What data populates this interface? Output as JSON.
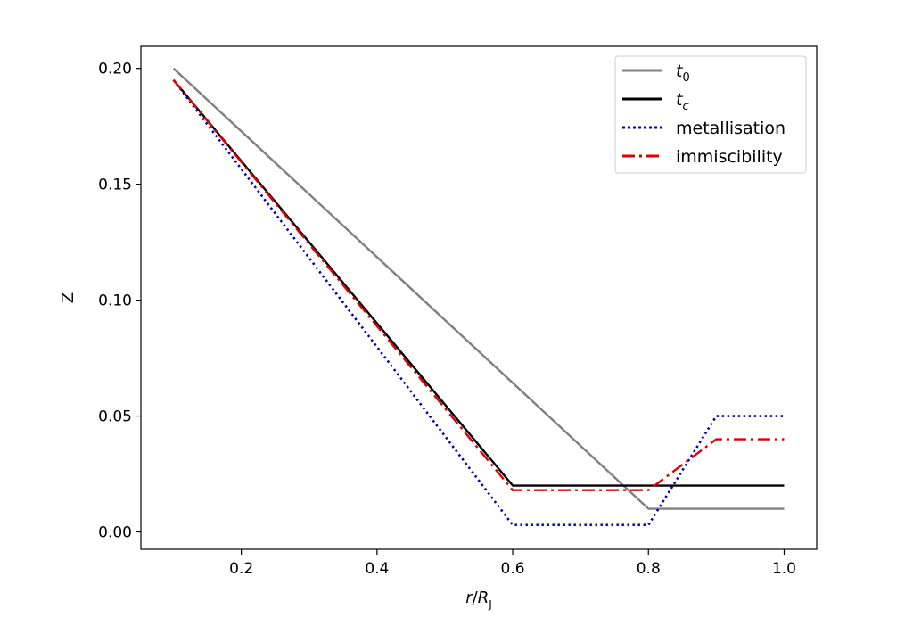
{
  "chart_data": {
    "type": "line",
    "xlabel": "r/R_J",
    "ylabel": "Z",
    "xlim": [
      0.052,
      1.048
    ],
    "ylim": [
      -0.0075,
      0.2095
    ],
    "xticks": [
      0.2,
      0.4,
      0.6,
      0.8,
      1.0
    ],
    "xtick_labels": [
      "0.2",
      "0.4",
      "0.6",
      "0.8",
      "1.0"
    ],
    "yticks": [
      0.0,
      0.05,
      0.1,
      0.15,
      0.2
    ],
    "ytick_labels": [
      "0.00",
      "0.05",
      "0.10",
      "0.15",
      "0.20"
    ],
    "grid": false,
    "legend_position": "top-right",
    "series": [
      {
        "name": "t0",
        "label_base": "t",
        "label_sub": "0",
        "italic": true,
        "color": "#808080",
        "style": "solid",
        "x": [
          0.1,
          0.8,
          1.0
        ],
        "y": [
          0.2,
          0.01,
          0.01
        ]
      },
      {
        "name": "tc",
        "label_base": "t",
        "label_sub": "c",
        "italic": true,
        "color": "#000000",
        "style": "solid",
        "x": [
          0.1,
          0.6,
          1.0
        ],
        "y": [
          0.195,
          0.02,
          0.02
        ]
      },
      {
        "name": "metallisation",
        "label_base": "metallisation",
        "label_sub": "",
        "italic": false,
        "color": "#0000aa",
        "style": "dotted",
        "x": [
          0.1,
          0.6,
          0.8,
          0.9,
          1.0
        ],
        "y": [
          0.195,
          0.003,
          0.003,
          0.05,
          0.05
        ]
      },
      {
        "name": "immiscibility",
        "label_base": "immiscibility",
        "label_sub": "",
        "italic": false,
        "color": "#dd0000",
        "style": "dashdot",
        "x": [
          0.1,
          0.6,
          0.8,
          0.9,
          1.0
        ],
        "y": [
          0.195,
          0.018,
          0.018,
          0.04,
          0.04
        ]
      }
    ]
  }
}
